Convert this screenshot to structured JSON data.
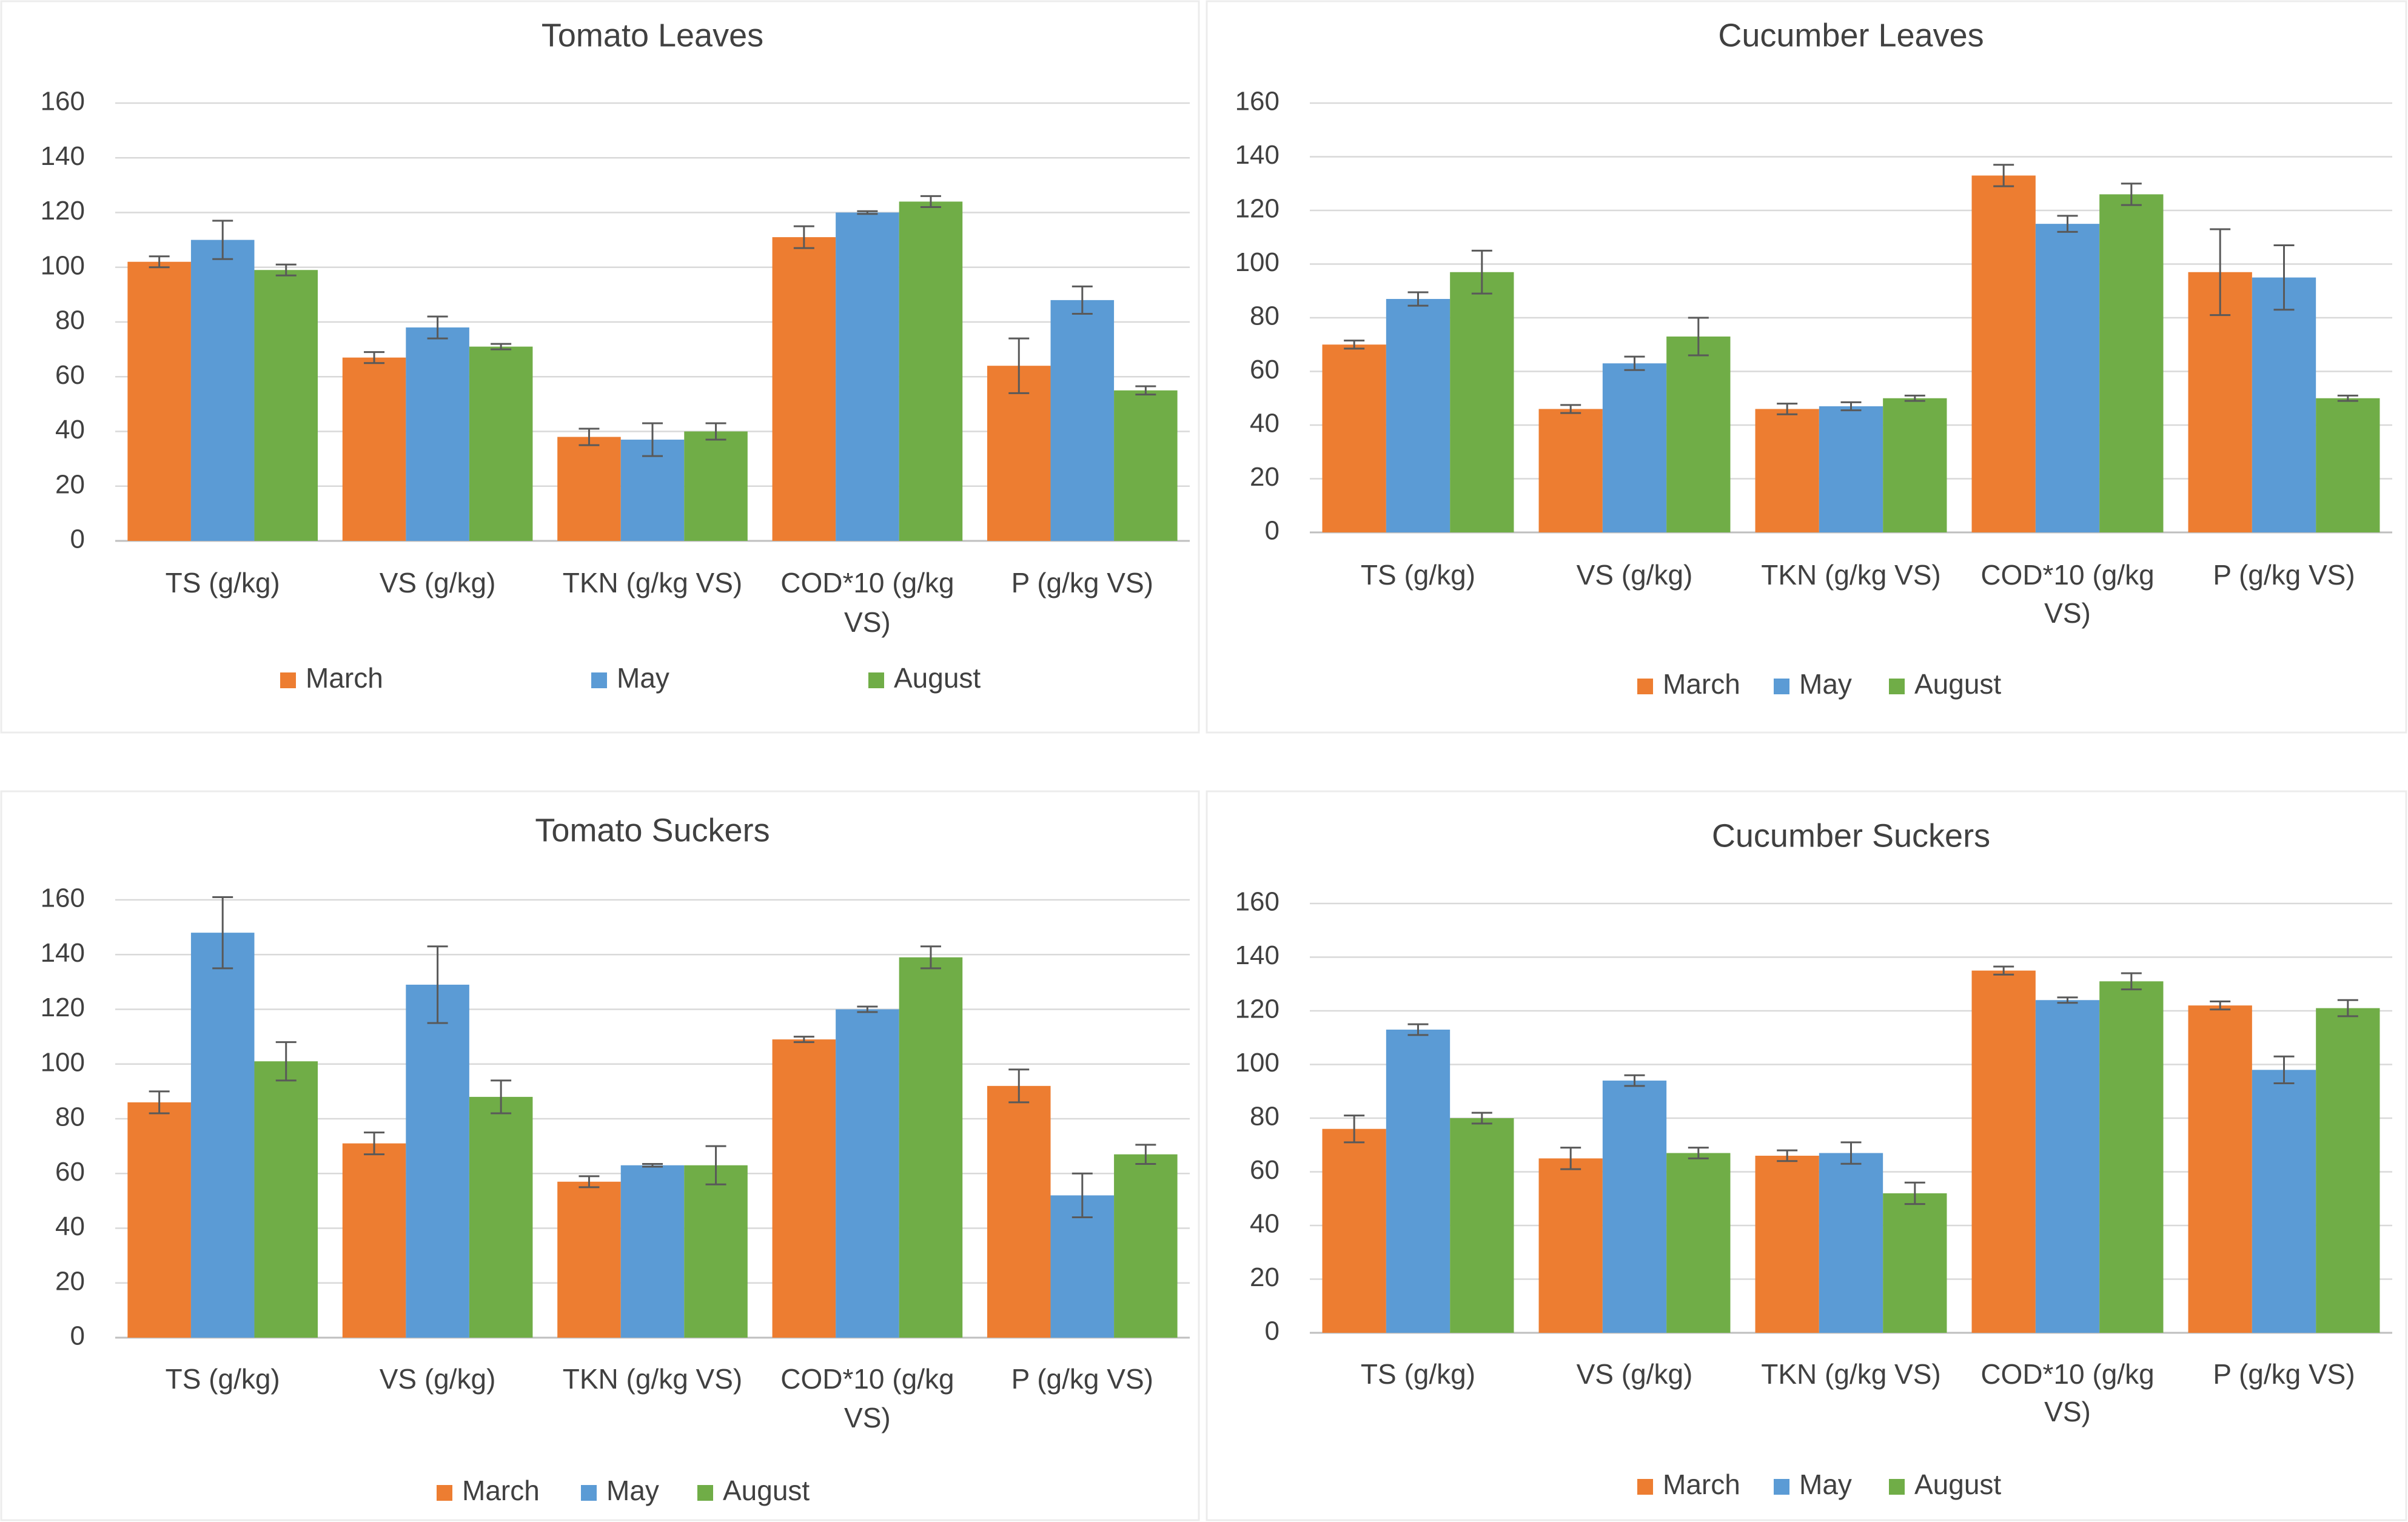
{
  "colors": {
    "March": "#ed7d31",
    "May": "#5b9bd5",
    "August": "#70ad47"
  },
  "chart_data": [
    {
      "type": "bar",
      "title": "Tomato Leaves",
      "categories": [
        "TS (g/kg)",
        "VS (g/kg)",
        "TKN (g/kg VS)",
        "COD*10 (g/kg VS)",
        "P (g/kg VS)"
      ],
      "ylim": [
        0,
        160
      ],
      "yticks": [
        0,
        20,
        40,
        60,
        80,
        100,
        120,
        140,
        160
      ],
      "gridlines": true,
      "legend_position": "bottom",
      "series": [
        {
          "name": "March",
          "values": [
            102,
            67,
            38,
            111,
            64
          ],
          "errors": [
            2,
            2,
            3,
            4,
            10
          ]
        },
        {
          "name": "May",
          "values": [
            110,
            78,
            37,
            120,
            88
          ],
          "errors": [
            7,
            4,
            6,
            0.5,
            5
          ]
        },
        {
          "name": "August",
          "values": [
            99,
            71,
            40,
            124,
            55
          ],
          "errors": [
            2,
            1,
            3,
            2,
            1.5
          ]
        }
      ]
    },
    {
      "type": "bar",
      "title": "Cucumber Leaves",
      "categories": [
        "TS (g/kg)",
        "VS (g/kg)",
        "TKN (g/kg VS)",
        "COD*10 (g/kg VS)",
        "P (g/kg VS)"
      ],
      "ylim": [
        0,
        160
      ],
      "yticks": [
        0,
        20,
        40,
        60,
        80,
        100,
        120,
        140,
        160
      ],
      "gridlines": true,
      "legend_position": "bottom",
      "series": [
        {
          "name": "March",
          "values": [
            70,
            46,
            46,
            133,
            97
          ],
          "errors": [
            1.5,
            1.5,
            2,
            4,
            16
          ]
        },
        {
          "name": "May",
          "values": [
            87,
            63,
            47,
            115,
            95
          ],
          "errors": [
            2.5,
            2.5,
            1.5,
            3,
            12
          ]
        },
        {
          "name": "August",
          "values": [
            97,
            73,
            50,
            126,
            50
          ],
          "errors": [
            8,
            7,
            1,
            4,
            1
          ]
        }
      ]
    },
    {
      "type": "bar",
      "title": "Tomato Suckers",
      "categories": [
        "TS (g/kg)",
        "VS (g/kg)",
        "TKN (g/kg VS)",
        "COD*10 (g/kg VS)",
        "P (g/kg VS)"
      ],
      "ylim": [
        0,
        160
      ],
      "yticks": [
        0,
        20,
        40,
        60,
        80,
        100,
        120,
        140,
        160
      ],
      "gridlines": true,
      "legend_position": "bottom",
      "series": [
        {
          "name": "March",
          "values": [
            86,
            71,
            57,
            109,
            92
          ],
          "errors": [
            4,
            4,
            2,
            1,
            6
          ]
        },
        {
          "name": "May",
          "values": [
            148,
            129,
            63,
            120,
            52
          ],
          "errors": [
            13,
            14,
            0.5,
            1,
            8
          ]
        },
        {
          "name": "August",
          "values": [
            101,
            88,
            63,
            139,
            67
          ],
          "errors": [
            7,
            6,
            7,
            4,
            3.5
          ]
        }
      ]
    },
    {
      "type": "bar",
      "title": "Cucumber Suckers",
      "categories": [
        "TS (g/kg)",
        "VS (g/kg)",
        "TKN (g/kg VS)",
        "COD*10 (g/kg VS)",
        "P (g/kg VS)"
      ],
      "ylim": [
        0,
        160
      ],
      "yticks": [
        0,
        20,
        40,
        60,
        80,
        100,
        120,
        140,
        160
      ],
      "gridlines": true,
      "legend_position": "bottom",
      "series": [
        {
          "name": "March",
          "values": [
            76,
            65,
            66,
            135,
            122
          ],
          "errors": [
            5,
            4,
            2,
            1.5,
            1.5
          ]
        },
        {
          "name": "May",
          "values": [
            113,
            94,
            67,
            124,
            98
          ],
          "errors": [
            2,
            2,
            4,
            1,
            5
          ]
        },
        {
          "name": "August",
          "values": [
            80,
            67,
            52,
            131,
            121
          ],
          "errors": [
            2,
            2,
            4,
            3,
            3
          ]
        }
      ]
    }
  ]
}
